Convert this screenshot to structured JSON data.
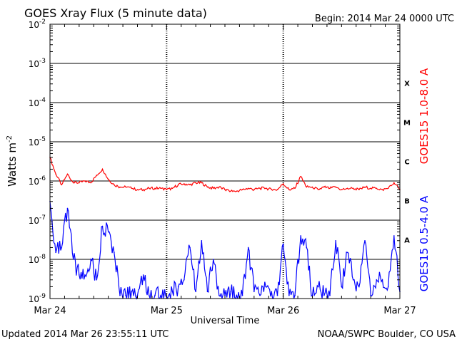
{
  "chart_data": {
    "type": "line",
    "title": "GOES Xray Flux (5 minute data)",
    "begin_label": "Begin:  2014 Mar 24 0000 UTC",
    "ylabel": "Watts m",
    "ylabel_sup": "-2",
    "xlabel": "Universal Time",
    "y_scale": "log",
    "ylim": [
      1e-09,
      0.01
    ],
    "y_ticks": [
      {
        "base": "10",
        "exp": "-9",
        "value": 1e-09
      },
      {
        "base": "10",
        "exp": "-8",
        "value": 1e-08
      },
      {
        "base": "10",
        "exp": "-7",
        "value": 1e-07
      },
      {
        "base": "10",
        "exp": "-6",
        "value": 1e-06
      },
      {
        "base": "10",
        "exp": "-5",
        "value": 1e-05
      },
      {
        "base": "10",
        "exp": "-4",
        "value": 0.0001
      },
      {
        "base": "10",
        "exp": "-3",
        "value": 0.001
      },
      {
        "base": "10",
        "exp": "-2",
        "value": 0.01
      }
    ],
    "x_ticks": [
      {
        "label": "Mar 24",
        "day": 0
      },
      {
        "label": "Mar 25",
        "day": 1
      },
      {
        "label": "Mar 26",
        "day": 2
      },
      {
        "label": "Mar 27",
        "day": 3
      }
    ],
    "xlim": [
      0,
      3
    ],
    "grid": "horizontal at decades, dashed vertical at day boundaries",
    "flare_classes": [
      {
        "label": "X",
        "level": 0.0001
      },
      {
        "label": "M",
        "level": 1e-05
      },
      {
        "label": "C",
        "level": 1e-06
      },
      {
        "label": "B",
        "level": 1e-07
      },
      {
        "label": "A",
        "level": 1e-08
      }
    ],
    "series": [
      {
        "name": "GOES15 1.0-8.0 A",
        "color": "#ff0000",
        "x": [
          0.0,
          0.05,
          0.1,
          0.15,
          0.2,
          0.25,
          0.3,
          0.35,
          0.4,
          0.45,
          0.5,
          0.55,
          0.6,
          0.65,
          0.7,
          0.75,
          0.8,
          0.85,
          0.9,
          0.95,
          1.0,
          1.05,
          1.1,
          1.15,
          1.2,
          1.25,
          1.3,
          1.35,
          1.4,
          1.45,
          1.5,
          1.55,
          1.6,
          1.65,
          1.7,
          1.75,
          1.8,
          1.85,
          1.9,
          1.95,
          2.0,
          2.05,
          2.1,
          2.15,
          2.2,
          2.25,
          2.3,
          2.35,
          2.4,
          2.45,
          2.5,
          2.55,
          2.6,
          2.65,
          2.7,
          2.75,
          2.8,
          2.85,
          2.9,
          2.95,
          3.0
        ],
        "values": [
          4e-06,
          1.5e-06,
          8e-07,
          1.5e-06,
          9e-07,
          9e-07,
          1e-06,
          9e-07,
          1.4e-06,
          2e-06,
          1.1e-06,
          8e-07,
          7e-07,
          7e-07,
          6.5e-07,
          6e-07,
          6e-07,
          6.5e-07,
          6.5e-07,
          6.5e-07,
          6e-07,
          6.5e-07,
          8e-07,
          8.5e-07,
          8e-07,
          9e-07,
          9e-07,
          7e-07,
          6.5e-07,
          7e-07,
          6e-07,
          5.5e-07,
          5.5e-07,
          6e-07,
          6.5e-07,
          6e-07,
          6.5e-07,
          6.5e-07,
          6e-07,
          6e-07,
          8.5e-07,
          6e-07,
          6.5e-07,
          1.3e-06,
          7e-07,
          7e-07,
          6e-07,
          7e-07,
          6.5e-07,
          7e-07,
          6e-07,
          6.5e-07,
          6.5e-07,
          6e-07,
          7e-07,
          6.5e-07,
          6.5e-07,
          6e-07,
          6.5e-07,
          9e-07,
          6e-07
        ]
      },
      {
        "name": "GOES15 0.5-4.0 A",
        "color": "#0000ff",
        "x": [
          0.0,
          0.05,
          0.1,
          0.15,
          0.2,
          0.25,
          0.3,
          0.35,
          0.4,
          0.45,
          0.5,
          0.55,
          0.6,
          0.65,
          0.7,
          0.75,
          0.8,
          0.85,
          0.9,
          0.95,
          1.0,
          1.05,
          1.1,
          1.15,
          1.2,
          1.25,
          1.3,
          1.35,
          1.4,
          1.45,
          1.5,
          1.55,
          1.6,
          1.65,
          1.7,
          1.75,
          1.8,
          1.85,
          1.9,
          1.95,
          2.0,
          2.05,
          2.1,
          2.15,
          2.2,
          2.25,
          2.3,
          2.35,
          2.4,
          2.45,
          2.5,
          2.55,
          2.6,
          2.65,
          2.7,
          2.75,
          2.8,
          2.85,
          2.9,
          2.95,
          3.0
        ],
        "values": [
          3e-07,
          1.5e-08,
          2e-08,
          2e-07,
          1e-08,
          4e-09,
          4e-09,
          1e-08,
          3e-09,
          7e-08,
          5e-08,
          1.5e-08,
          1.2e-09,
          1.2e-09,
          1.5e-09,
          1.2e-09,
          4e-09,
          1.2e-09,
          1.2e-09,
          1.2e-09,
          1.1e-09,
          1.5e-09,
          2e-09,
          3e-09,
          2e-08,
          1.5e-09,
          3e-08,
          1.5e-09,
          1e-08,
          1.2e-09,
          1.2e-09,
          1.5e-09,
          1.2e-09,
          1.2e-09,
          2e-08,
          1.5e-09,
          1.2e-09,
          2e-09,
          1.5e-09,
          1.2e-09,
          2.5e-08,
          1.2e-09,
          1.2e-09,
          4e-08,
          2e-08,
          1.2e-09,
          2e-09,
          1.2e-09,
          1.2e-09,
          3e-08,
          2e-09,
          1.5e-08,
          3e-09,
          2e-09,
          3e-08,
          1.2e-09,
          3e-09,
          3e-09,
          2e-09,
          4e-08,
          1.5e-09
        ]
      }
    ]
  },
  "footer": {
    "updated": "Updated 2014 Mar 26 23:55:11 UTC",
    "source": "NOAA/SWPC Boulder, CO USA"
  }
}
